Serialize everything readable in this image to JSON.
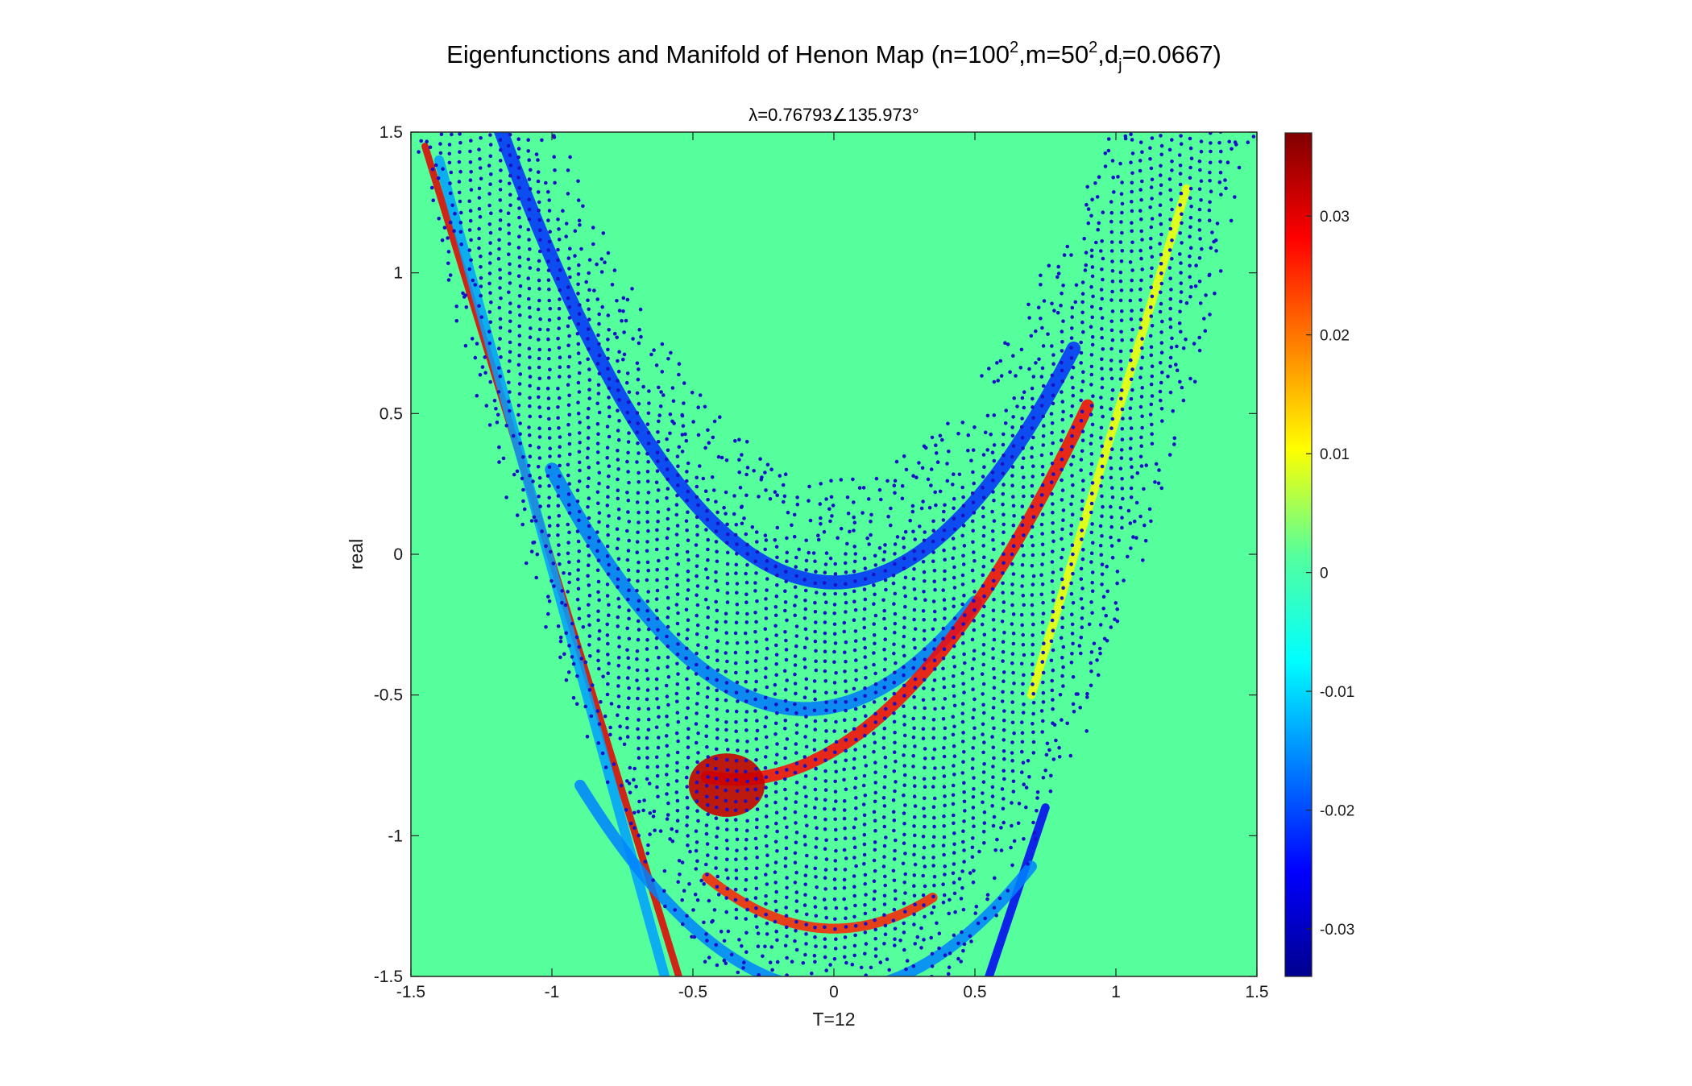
{
  "chart_data": {
    "type": "heatmap",
    "title_parts": {
      "before": "Eigenfunctions and Manifold of Henon Map (n=100",
      "sup1": "2",
      "mid": ",m=50",
      "sup2": "2",
      "mid2": ",d",
      "sub": "j",
      "after": "=0.0667)"
    },
    "subtitle": "λ=0.76793∠135.973°",
    "xlabel": "T=12",
    "ylabel": "real",
    "xlim": [
      -1.5,
      1.5
    ],
    "ylim": [
      -1.5,
      1.5
    ],
    "xticks": [
      -1.5,
      -1,
      -0.5,
      0,
      0.5,
      1,
      1.5
    ],
    "yticks": [
      -1.5,
      -1,
      -0.5,
      0,
      0.5,
      1,
      1.5
    ],
    "xtick_labels": [
      "-1.5",
      "-1",
      "-0.5",
      "0",
      "0.5",
      "1",
      "1.5"
    ],
    "ytick_labels": [
      "-1.5",
      "-1",
      "-0.5",
      "0",
      "0.5",
      "1",
      "1.5"
    ],
    "colormap": "jet",
    "background_color": "#55ff9c",
    "colorbar": {
      "range": [
        -0.034,
        0.037
      ],
      "ticks": [
        -0.03,
        -0.02,
        -0.01,
        0,
        0.01,
        0.02,
        0.03
      ],
      "tick_labels": [
        "-0.03",
        "-0.02",
        "-0.01",
        "0",
        "0.01",
        "0.02",
        "0.03"
      ]
    },
    "overlay_points_color": "#1a10c8",
    "bands": [
      {
        "name": "red-left-strand",
        "shape": "line",
        "p0": [
          -1.45,
          1.45
        ],
        "p1": [
          -0.55,
          -1.5
        ],
        "value": 0.03,
        "width": 0.025
      },
      {
        "name": "blue-left-strand",
        "shape": "line",
        "p0": [
          -1.4,
          1.4
        ],
        "p1": [
          -0.6,
          -1.5
        ],
        "value": -0.014,
        "width": 0.035
      },
      {
        "name": "blue-inner-arc",
        "shape": "parabola",
        "vertex_x": 0.0,
        "vertex_y": -0.1,
        "k": 1.15,
        "xrange": [
          -1.35,
          0.85
        ],
        "value": -0.022,
        "width": 0.05
      },
      {
        "name": "blue-second-arc",
        "shape": "parabola",
        "vertex_x": -0.1,
        "vertex_y": -0.55,
        "k": 1.05,
        "xrange": [
          -1.0,
          0.5
        ],
        "value": -0.017,
        "width": 0.05
      },
      {
        "name": "red-central-arc",
        "shape": "parabola",
        "vertex_x": -0.35,
        "vertex_y": -0.8,
        "k": 0.85,
        "xrange": [
          -0.45,
          0.9
        ],
        "value": 0.028,
        "width": 0.045
      },
      {
        "name": "red-blob",
        "shape": "blob",
        "center": [
          -0.38,
          -0.82
        ],
        "radius": 0.15,
        "value": 0.032
      },
      {
        "name": "red-lower-arc",
        "shape": "parabola",
        "vertex_x": 0.0,
        "vertex_y": -1.33,
        "k": 0.9,
        "xrange": [
          -0.45,
          0.35
        ],
        "value": 0.026,
        "width": 0.035
      },
      {
        "name": "yellow-right-strand",
        "shape": "line",
        "p0": [
          1.25,
          1.3
        ],
        "p1": [
          0.7,
          -0.5
        ],
        "value": 0.01,
        "width": 0.03
      },
      {
        "name": "blue-right-strand",
        "shape": "line",
        "p0": [
          0.75,
          -0.9
        ],
        "p1": [
          0.55,
          -1.5
        ],
        "value": -0.026,
        "width": 0.03
      },
      {
        "name": "blue-lower-outer",
        "shape": "parabola",
        "vertex_x": 0.0,
        "vertex_y": -1.55,
        "k": 0.9,
        "xrange": [
          -0.9,
          0.7
        ],
        "value": -0.016,
        "width": 0.04
      }
    ],
    "manifold": {
      "description": "scattered manifold points of the Henon attractor",
      "inner_edge_vertex_y": 0.28,
      "outer_edge_vertex_y": -1.75,
      "k": 1.4,
      "xrange": [
        -1.5,
        1.5
      ]
    }
  }
}
